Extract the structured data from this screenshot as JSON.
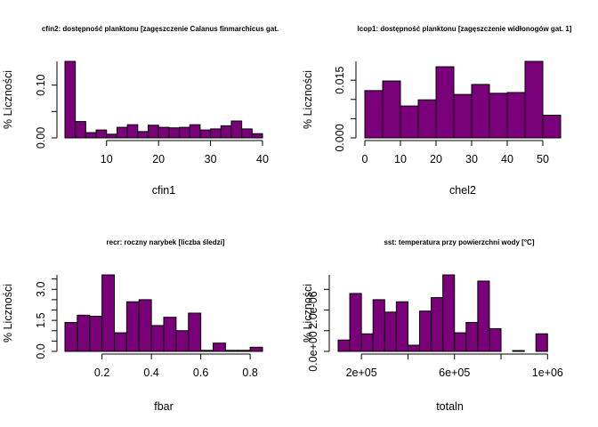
{
  "bar_color": "#7a007a",
  "chart_data": [
    {
      "type": "bar",
      "title": "cfin2: dostępność planktonu [zagęszczenie Calanus finmarchicus gat.",
      "xlabel": "cfin1",
      "ylabel": "% Liczności",
      "bin_edges": [
        2,
        4,
        6,
        8,
        10,
        12,
        14,
        16,
        18,
        20,
        22,
        24,
        26,
        28,
        30,
        32,
        34,
        36,
        38,
        40
      ],
      "values": [
        0.145,
        0.031,
        0.01,
        0.015,
        0.007,
        0.02,
        0.025,
        0.012,
        0.024,
        0.02,
        0.019,
        0.02,
        0.025,
        0.015,
        0.017,
        0.023,
        0.032,
        0.017,
        0.008
      ],
      "xlim": [
        2,
        40
      ],
      "ylim": [
        0,
        0.145
      ],
      "xticks": [
        10,
        20,
        30,
        40
      ],
      "yticks": [
        0.0,
        0.1
      ],
      "ytick_labels": [
        "0.00",
        "0.10"
      ]
    },
    {
      "type": "bar",
      "title": "lcop1: dostępność planktonu [zagęszczenie widłonogów gat. 1]",
      "xlabel": "chel2",
      "ylabel": "% Liczności",
      "bin_edges": [
        0,
        5,
        10,
        15,
        20,
        25,
        30,
        35,
        40,
        45,
        50,
        55
      ],
      "values": [
        0.0123,
        0.0148,
        0.0083,
        0.0099,
        0.0185,
        0.0113,
        0.0139,
        0.0116,
        0.0118,
        0.0199,
        0.0059
      ],
      "xlim": [
        0,
        55
      ],
      "ylim": [
        0,
        0.0199
      ],
      "xticks": [
        0,
        10,
        20,
        30,
        40,
        50
      ],
      "yticks": [
        0.0,
        0.015
      ],
      "ytick_labels": [
        "0.000",
        "0.015"
      ]
    },
    {
      "type": "bar",
      "title": "recr: roczny narybek [liczba śledzi]",
      "xlabel": "fbar",
      "ylabel": "% Liczności",
      "bin_edges": [
        0.05,
        0.1,
        0.15,
        0.2,
        0.25,
        0.3,
        0.35,
        0.4,
        0.45,
        0.5,
        0.55,
        0.6,
        0.65,
        0.7,
        0.75,
        0.8,
        0.85
      ],
      "values": [
        1.4,
        1.75,
        1.7,
        3.7,
        0.9,
        2.4,
        2.5,
        1.25,
        1.65,
        1.0,
        1.85,
        0.05,
        0.4,
        0.05,
        0.05,
        0.2
      ],
      "xlim": [
        0.05,
        0.85
      ],
      "ylim": [
        0,
        3.7
      ],
      "xticks": [
        0.2,
        0.4,
        0.6,
        0.8
      ],
      "yticks": [
        0.0,
        1.5,
        3.0
      ],
      "ytick_labels": [
        "0.0",
        "1.5",
        "3.0"
      ]
    },
    {
      "type": "bar",
      "title": "sst: temperatura przy powierzchni wody [°C]",
      "xlabel": "totaln",
      "ylabel": "% Liczności",
      "bin_edges": [
        100000,
        150000,
        200000,
        250000,
        300000,
        350000,
        400000,
        450000,
        500000,
        550000,
        600000,
        650000,
        700000,
        750000,
        800000,
        850000,
        900000,
        950000,
        1000000,
        1050000
      ],
      "values": [
        5.5e-07,
        2.8e-06,
        8.5e-07,
        2.5e-06,
        1.9e-06,
        2.4e-06,
        3e-07,
        1.95e-06,
        2.6e-06,
        3.7e-06,
        9e-07,
        1.4e-06,
        3.4e-06,
        1.1e-06,
        0,
        4e-08,
        0,
        8.5e-07,
        0
      ],
      "xlim": [
        100000,
        1060000
      ],
      "ylim": [
        0,
        3.7e-06
      ],
      "xticks": [
        200000,
        600000,
        1000000
      ],
      "xtick_labels": [
        "2e+05",
        "6e+05",
        "1e+06"
      ],
      "yticks": [
        0,
        2e-06
      ],
      "ytick_labels": [
        "0.0e+00",
        "2.0e-06"
      ]
    }
  ]
}
